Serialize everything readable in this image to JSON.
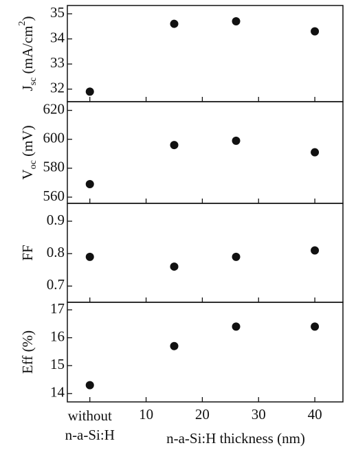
{
  "chart_data": [
    {
      "type": "scatter",
      "ylabel": {
        "main": "J",
        "sub": "sc",
        "rest": " (mA/cm",
        "sup": "2",
        "end": ")"
      },
      "x": [
        0,
        15,
        26,
        40
      ],
      "values": [
        31.9,
        34.6,
        34.7,
        34.3
      ],
      "color": "#111111",
      "xlim": [
        -4,
        45
      ],
      "ylim": [
        31.5,
        35.33
      ],
      "yticks": [
        32,
        33,
        34,
        35
      ]
    },
    {
      "type": "scatter",
      "ylabel": {
        "main": "V",
        "sub": "oc",
        "rest": " (mV)"
      },
      "x": [
        0,
        15,
        26,
        40
      ],
      "values": [
        569,
        596,
        599,
        591
      ],
      "color": "#111111",
      "xlim": [
        -4,
        45
      ],
      "ylim": [
        555.7,
        626
      ],
      "yticks": [
        560,
        580,
        600,
        620
      ]
    },
    {
      "type": "scatter",
      "ylabel": {
        "main": "FF"
      },
      "x": [
        0,
        15,
        26,
        40
      ],
      "values": [
        0.79,
        0.76,
        0.79,
        0.81
      ],
      "color": "#111111",
      "xlim": [
        -4,
        45
      ],
      "ylim": [
        0.65,
        0.955
      ],
      "yticks": [
        0.7,
        0.8,
        0.9
      ]
    },
    {
      "type": "scatter",
      "ylabel": {
        "main": "Eff (%)"
      },
      "x": [
        0,
        15,
        26,
        40
      ],
      "values": [
        14.3,
        15.7,
        16.4,
        16.4
      ],
      "color": "#111111",
      "xlim": [
        -4,
        45
      ],
      "ylim": [
        13.7,
        17.27
      ],
      "yticks": [
        14,
        15,
        16,
        17
      ],
      "xlabel": "n-a-Si:H thickness (nm)",
      "xticks": [
        {
          "value": 0,
          "label": [
            "without",
            "n-a-Si:H"
          ]
        },
        10,
        20,
        30,
        40
      ]
    }
  ]
}
